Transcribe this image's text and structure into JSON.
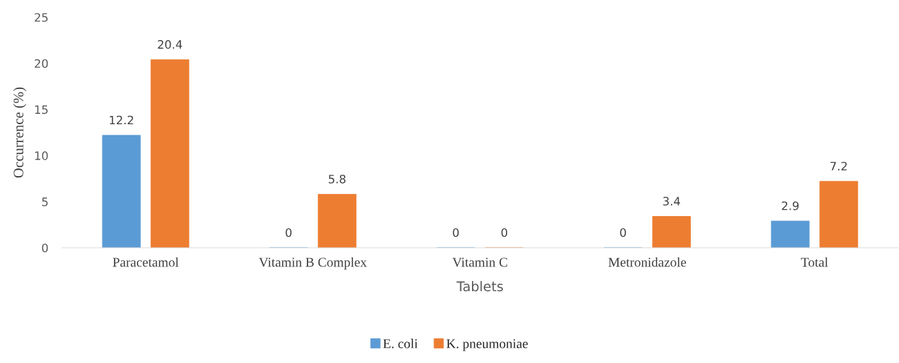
{
  "chart_data": {
    "type": "bar",
    "categories": [
      "Paracetamol",
      "Vitamin B Complex",
      "Vitamin C",
      "Metronidazole",
      "Total"
    ],
    "series": [
      {
        "name": "E. coli",
        "color": "#5b9bd5",
        "values": [
          12.2,
          0,
          0,
          0,
          2.9
        ]
      },
      {
        "name": "K. pneumoniae",
        "color": "#ed7d31",
        "values": [
          20.4,
          5.8,
          0,
          3.4,
          7.2
        ]
      }
    ],
    "xlabel": "Tablets",
    "ylabel": "Occurrence (%)",
    "ylim": [
      0,
      25
    ],
    "yticks": [
      0,
      5,
      10,
      15,
      20,
      25
    ],
    "data_labels": true,
    "grid": false,
    "legend": "bottom"
  }
}
